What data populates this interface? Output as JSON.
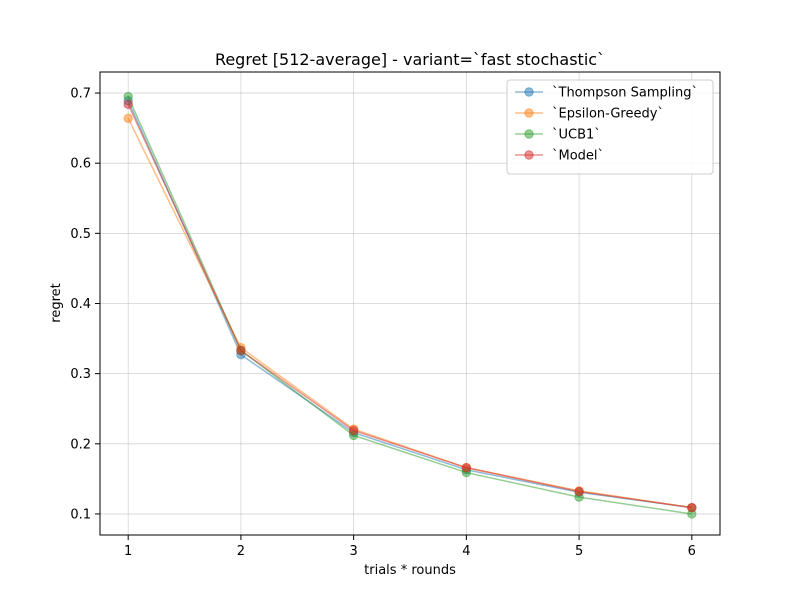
{
  "chart_data": {
    "type": "line",
    "title": "Regret [512-average] - variant=`fast stochastic`",
    "xlabel": "trials * rounds",
    "ylabel": "regret",
    "x": [
      1,
      2,
      3,
      4,
      5,
      6
    ],
    "xlim": [
      0.75,
      6.25
    ],
    "ylim": [
      0.07,
      0.73
    ],
    "xticks": [
      1,
      2,
      3,
      4,
      5,
      6
    ],
    "yticks": [
      0.1,
      0.2,
      0.3,
      0.4,
      0.5,
      0.6,
      0.7
    ],
    "grid": true,
    "legend_position": "top-right",
    "series": [
      {
        "name": "`Thompson Sampling`",
        "color": "#1f77b4",
        "values": [
          0.689,
          0.327,
          0.216,
          0.163,
          0.131,
          0.109
        ]
      },
      {
        "name": "`Epsilon-Greedy`",
        "color": "#ff7f0e",
        "values": [
          0.664,
          0.337,
          0.221,
          0.166,
          0.133,
          0.109
        ]
      },
      {
        "name": "`UCB1`",
        "color": "#2ca02c",
        "values": [
          0.695,
          0.333,
          0.212,
          0.159,
          0.124,
          0.1
        ]
      },
      {
        "name": "`Model`",
        "color": "#d62728",
        "values": [
          0.684,
          0.333,
          0.219,
          0.166,
          0.132,
          0.109
        ]
      }
    ]
  }
}
